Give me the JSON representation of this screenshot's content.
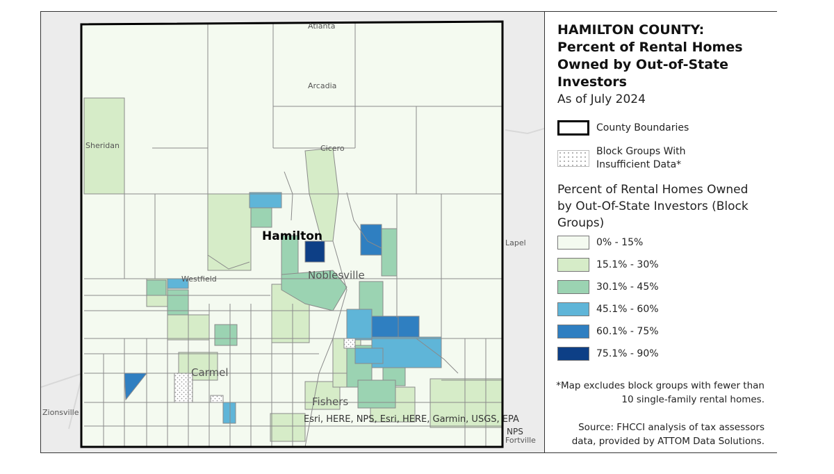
{
  "map": {
    "places": {
      "atlanta": "Atlanta",
      "arcadia": "Arcadia",
      "sheridan": "Sheridan",
      "cicero": "Cicero",
      "hamilton": "Hamilton",
      "noblesville": "Noblesville",
      "westfield": "Westfield",
      "lapel": "Lapel",
      "carmel": "Carmel",
      "fishers": "Fishers",
      "zionsville": "Zionsville",
      "fortville": "Fortville"
    },
    "attribution": "Esri, HERE, NPS, Esri, HERE, Garmin, USGS, EPA",
    "attribution_tail": "NPS"
  },
  "legend": {
    "title": "HAMILTON COUNTY: Percent of Rental Homes Owned by Out-of-State Investors",
    "subtitle": "As of July 2024",
    "county_boundaries": "County Boundaries",
    "insufficient_data": "Block Groups With Insufficient Data*",
    "section_title": "Percent of Rental Homes Owned by Out-Of-State Investors (Block Groups)",
    "classes": [
      {
        "label": "0% - 15%",
        "color": "#f4faf0"
      },
      {
        "label": "15.1% - 30%",
        "color": "#d6ecc8"
      },
      {
        "label": "30.1% - 45%",
        "color": "#9bd3b2"
      },
      {
        "label": "45.1% - 60%",
        "color": "#5fb5d8"
      },
      {
        "label": "60.1% - 75%",
        "color": "#2f7fc1"
      },
      {
        "label": "75.1% - 90%",
        "color": "#0d3f86"
      }
    ],
    "note": "*Map excludes block groups with fewer than 10 single-family rental homes.",
    "source": "Source: FHCCI analysis of tax assessors data, provided by ATTOM Data Solutions."
  },
  "colors": {
    "border": "#000000",
    "block_line": "#8a8a8a",
    "basemap": "#ececec"
  }
}
